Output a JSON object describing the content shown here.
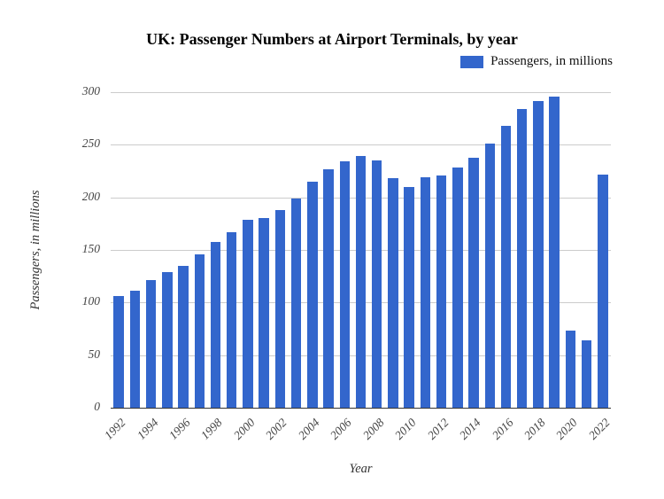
{
  "legend": {
    "label": "Passengers, in millions",
    "swatch_color": "#3366CC"
  },
  "chart_data": {
    "type": "bar",
    "title": "UK: Passenger Numbers at Airport Terminals, by year",
    "xlabel": "Year",
    "ylabel": "Passengers, in millions",
    "ylim": [
      0,
      300
    ],
    "yticks": [
      0,
      50,
      100,
      150,
      200,
      250,
      300
    ],
    "grid": true,
    "legend_position": "top-right",
    "bar_color": "#3366CC",
    "categories": [
      "1992",
      "1993",
      "1994",
      "1995",
      "1996",
      "1997",
      "1998",
      "1999",
      "2000",
      "2001",
      "2002",
      "2003",
      "2004",
      "2005",
      "2006",
      "2007",
      "2008",
      "2009",
      "2010",
      "2011",
      "2012",
      "2013",
      "2014",
      "2015",
      "2016",
      "2017",
      "2018",
      "2019",
      "2020",
      "2021",
      "2022"
    ],
    "values": [
      106,
      111,
      121,
      129,
      135,
      146,
      158,
      167,
      179,
      180,
      188,
      199,
      215,
      227,
      234,
      239,
      235,
      218,
      210,
      219,
      221,
      228,
      238,
      251,
      268,
      284,
      292,
      296,
      73,
      64,
      222
    ],
    "x_tick_labels": [
      "1992",
      "1994",
      "1996",
      "1998",
      "2000",
      "2002",
      "2004",
      "2006",
      "2008",
      "2010",
      "2012",
      "2014",
      "2016",
      "2018",
      "2020",
      "2022"
    ]
  }
}
